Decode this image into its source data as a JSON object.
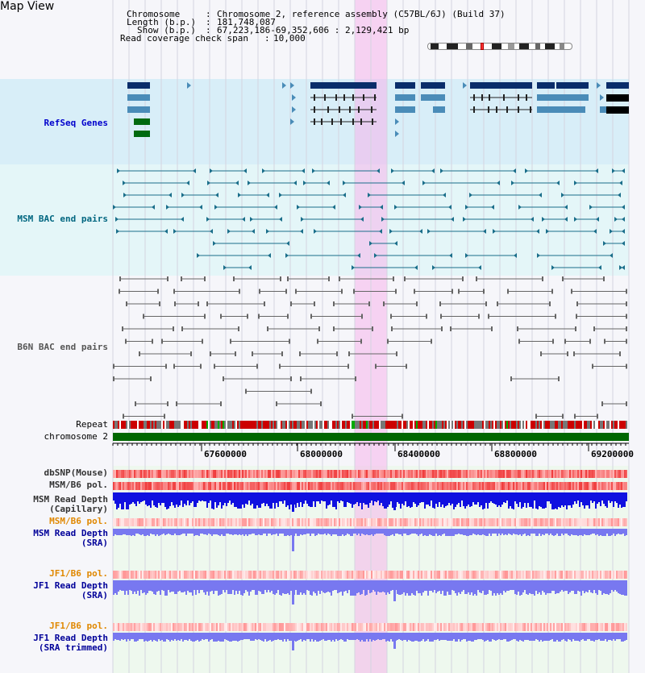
{
  "app": {
    "title": "Map View"
  },
  "header": {
    "chromosome_label": "Chromosome",
    "chromosome_value": "Chromosome 2, reference assembly (C57BL/6J) (Build 37)",
    "length_label": "Length (b.p.)",
    "length_value": "181,748,087",
    "show_label": "Show (b.p.)",
    "show_value": "67,223,186-69,352,606 : 2,129,421 bp",
    "coverage_label": "Read coverage check span",
    "coverage_value": "10,000"
  },
  "tracks": {
    "refseq": "RefSeq Genes",
    "msm_bac": "MSM BAC end pairs",
    "b6n_bac": "B6N BAC end pairs",
    "repeat": "Repeat",
    "chromosome": "chromosome 2",
    "dbsnp": "dbSNP(Mouse)",
    "msm_b6_pol_1": "MSM/B6 pol.",
    "msm_read_depth_cap_1": "MSM Read Depth",
    "msm_read_depth_cap_2": "(Capillary)",
    "msm_b6_pol_2": "MSM/B6 pol.",
    "msm_read_depth_sra_1": "MSM Read Depth",
    "msm_read_depth_sra_2": "(SRA)",
    "jf1_b6_pol_1": "JF1/B6 pol.",
    "jf1_read_depth_sra_1": "JF1 Read Depth",
    "jf1_read_depth_sra_2": "(SRA)",
    "jf1_b6_pol_2": "JF1/B6 pol.",
    "jf1_read_depth_trim_1": "JF1 Read Depth",
    "jf1_read_depth_trim_2": "(SRA trimmed)"
  },
  "ruler": {
    "ticks": [
      "67600000",
      "68000000",
      "68400000",
      "68800000",
      "69200000"
    ]
  },
  "colors": {
    "refseq_bg": "#d8eef8",
    "msm_bg": "#e4f6f8",
    "highlight": "#f5b4eb",
    "gene_dark": "#0a2d6a",
    "gene_mid": "#4a8cb8",
    "gene_green": "#006a10",
    "msm_line": "#1a6e8a",
    "b6n_line": "#666666",
    "chrom_green": "#006600",
    "depth_blue": "#1010e0",
    "depth_light": "#7878f0"
  }
}
